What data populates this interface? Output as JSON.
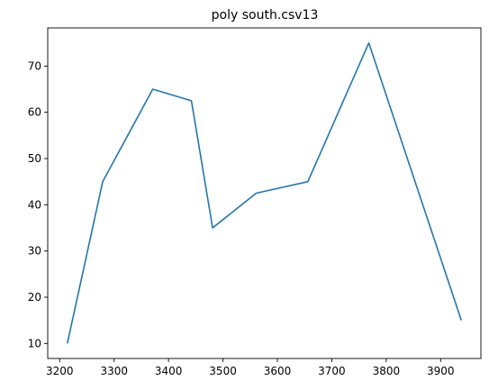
{
  "chart_data": {
    "type": "line",
    "title": "poly south.csv13",
    "xlabel": "",
    "ylabel": "",
    "xlim": [
      3178,
      3974
    ],
    "ylim": [
      6.75,
      78.25
    ],
    "x_ticks": [
      3200,
      3300,
      3400,
      3500,
      3600,
      3700,
      3800,
      3900
    ],
    "y_ticks": [
      10,
      20,
      30,
      40,
      50,
      60,
      70
    ],
    "grid": false,
    "series": [
      {
        "color": "#1f77b4",
        "x": [
          3214,
          3279,
          3371,
          3442,
          3481,
          3561,
          3656,
          3768,
          3938
        ],
        "y": [
          10,
          45,
          65,
          62.5,
          35,
          42.5,
          45,
          75,
          15
        ]
      }
    ]
  }
}
